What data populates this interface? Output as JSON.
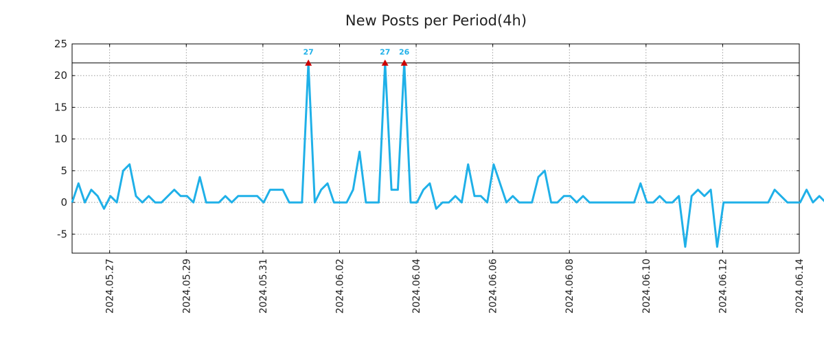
{
  "chart_data": {
    "type": "line",
    "title": "New Posts per Period(4h)",
    "xlabel": "",
    "ylabel": "",
    "ylim": [
      -8,
      25
    ],
    "yticks": [
      -5,
      0,
      5,
      10,
      15,
      20,
      25
    ],
    "ytick_labels": [
      "-5",
      "0",
      "5",
      "10",
      "15",
      "20",
      "25"
    ],
    "x_range_days": [
      -0.98,
      18.0
    ],
    "x_tick_days": [
      0,
      2,
      4,
      6,
      8,
      10,
      12,
      14,
      16,
      18
    ],
    "x_tick_labels": [
      "2024.05.27",
      "2024.05.29",
      "2024.05.31",
      "2024.06.02",
      "2024.06.04",
      "2024.06.06",
      "2024.06.08",
      "2024.06.10",
      "2024.06.12",
      "2024.06.14"
    ],
    "x_step_days": 0.1667,
    "x_start_day": -0.98,
    "cap_value": 22,
    "series": [
      {
        "name": "New Posts",
        "color": "#1fb0e8",
        "values": [
          0,
          3,
          0,
          2,
          1,
          -1,
          1,
          0,
          5,
          6,
          1,
          0,
          1,
          0,
          0,
          1,
          2,
          1,
          1,
          0,
          4,
          0,
          0,
          0,
          1,
          0,
          1,
          1,
          1,
          1,
          0,
          2,
          2,
          2,
          0,
          0,
          0,
          22,
          0,
          2,
          3,
          0,
          0,
          0,
          2,
          8,
          0,
          0,
          0,
          22,
          2,
          2,
          22,
          0,
          0,
          2,
          3,
          -1,
          0,
          0,
          1,
          0,
          6,
          1,
          1,
          0,
          6,
          3,
          0,
          1,
          0,
          0,
          0,
          4,
          5,
          0,
          0,
          1,
          1,
          0,
          1,
          0,
          0,
          0,
          0,
          0,
          0,
          0,
          0,
          3,
          0,
          0,
          1,
          0,
          0,
          1,
          -7,
          1,
          2,
          1,
          2,
          -7,
          0,
          0,
          0,
          0,
          0,
          0,
          0,
          0,
          2,
          1,
          0,
          0,
          0,
          2,
          0,
          1,
          0
        ]
      }
    ],
    "peaks": [
      {
        "index": 37,
        "label": "27"
      },
      {
        "index": 49,
        "label": "27"
      },
      {
        "index": 52,
        "label": "26"
      }
    ],
    "peak_marker_color": "#cc0000",
    "peak_label_color": "#1fb0e8"
  }
}
